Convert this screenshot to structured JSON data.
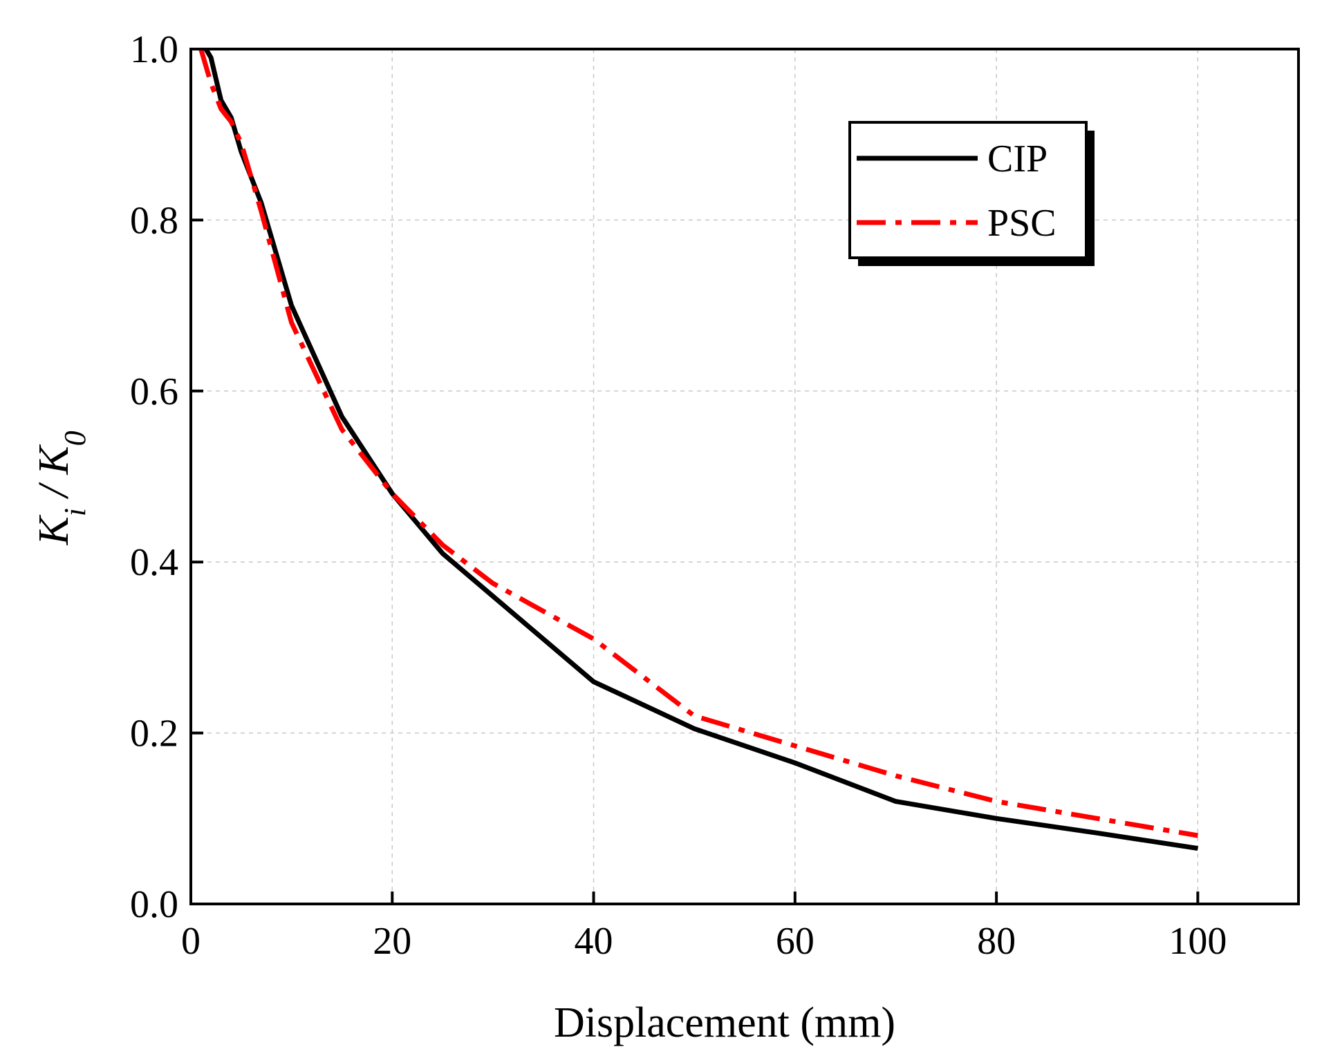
{
  "chart_data": {
    "type": "line",
    "title": "",
    "xlabel": "Displacement (mm)",
    "ylabel": {
      "main": "K",
      "sub_i": "i",
      "slash": " / K",
      "sub_0": "0"
    },
    "xlim": [
      0,
      110
    ],
    "ylim": [
      0,
      1.0
    ],
    "xticks": [
      0,
      20,
      40,
      60,
      80,
      100
    ],
    "xtick_labels": [
      "0",
      "20",
      "40",
      "60",
      "80",
      "100"
    ],
    "yticks": [
      0,
      0.2,
      0.4,
      0.6,
      0.8,
      1.0
    ],
    "ytick_labels": [
      "0.0",
      "0.2",
      "0.4",
      "0.6",
      "0.8",
      "1.0"
    ],
    "grid": true,
    "legend_position": "top-right",
    "series": [
      {
        "name": "CIP",
        "color": "#000000",
        "style": "solid",
        "x": [
          1.5,
          2,
          3,
          4,
          5,
          7,
          10,
          15,
          20,
          25,
          30,
          40,
          50,
          60,
          70,
          80,
          90,
          100
        ],
        "y": [
          1.0,
          0.99,
          0.94,
          0.92,
          0.88,
          0.82,
          0.7,
          0.57,
          0.48,
          0.41,
          0.36,
          0.26,
          0.205,
          0.165,
          0.12,
          0.1,
          0.083,
          0.065
        ]
      },
      {
        "name": "PSC",
        "color": "#ff0000",
        "style": "dashdot",
        "x": [
          1,
          2,
          3,
          4,
          5,
          7,
          10,
          15,
          20,
          25,
          30,
          40,
          50,
          60,
          70,
          80,
          90,
          100
        ],
        "y": [
          1.0,
          0.96,
          0.93,
          0.915,
          0.89,
          0.81,
          0.68,
          0.555,
          0.48,
          0.42,
          0.375,
          0.31,
          0.22,
          0.185,
          0.15,
          0.12,
          0.1,
          0.08
        ]
      }
    ]
  }
}
